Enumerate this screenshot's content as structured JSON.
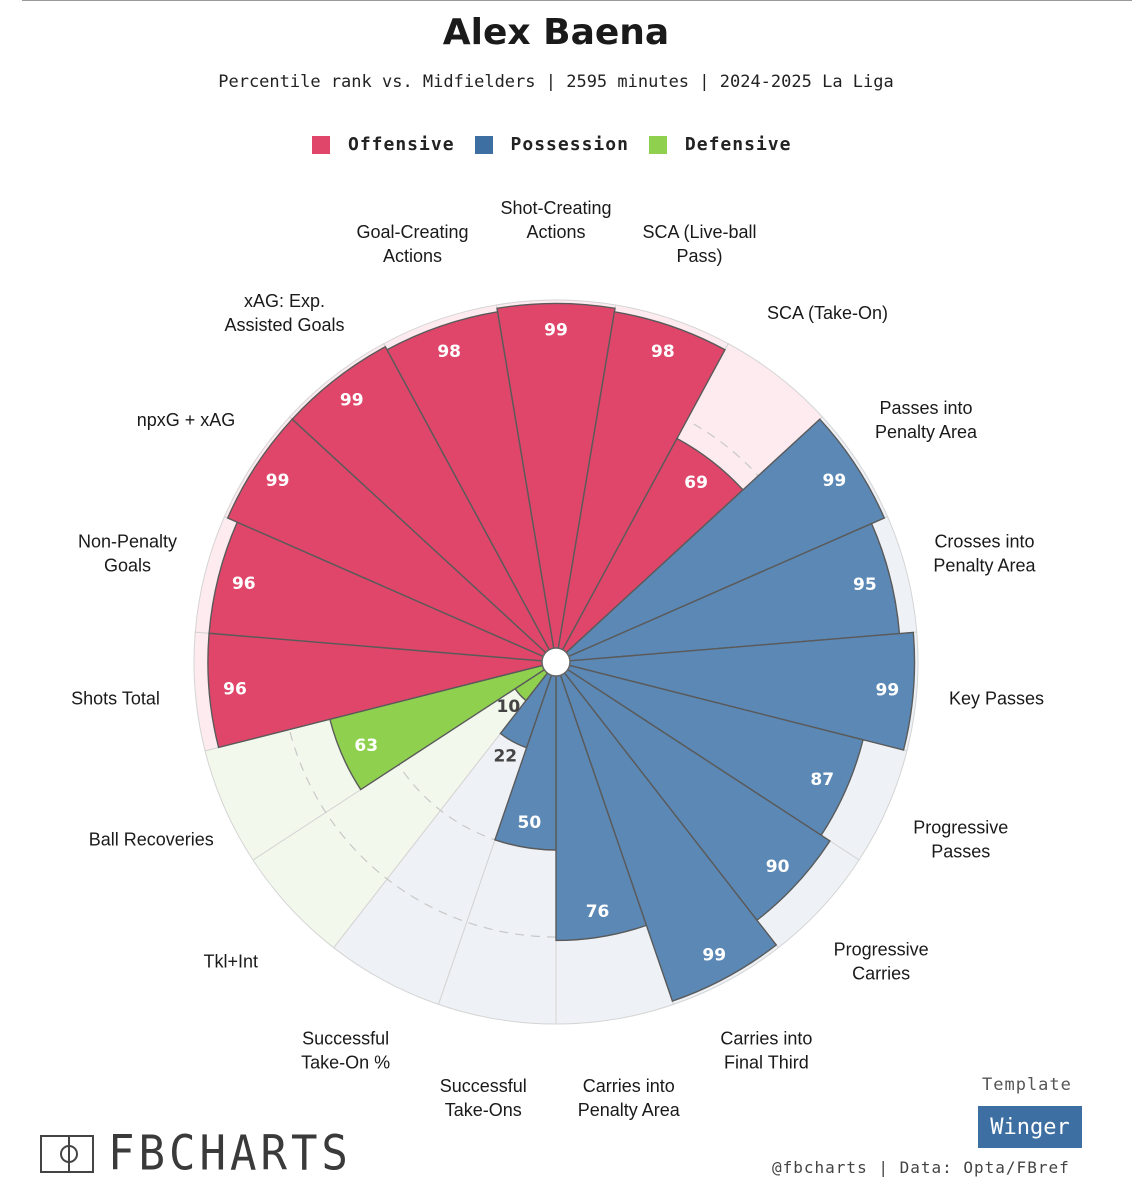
{
  "header": {
    "title": "Alex Baena",
    "subtitle": "Percentile rank vs. Midfielders | 2595 minutes | 2024-2025 La Liga"
  },
  "legend": [
    {
      "label": "Offensive",
      "color": "#e0466a"
    },
    {
      "label": "Possession",
      "color": "#3d6fa3"
    },
    {
      "label": "Defensive",
      "color": "#8fd14f"
    }
  ],
  "chart_data": {
    "type": "pizza",
    "range": [
      0,
      100
    ],
    "categories": {
      "Offensive": {
        "fill": "#e0466a",
        "background": "#fdebef"
      },
      "Possession": {
        "fill": "#5b88b5",
        "background": "#eef2f6"
      },
      "Defensive": {
        "fill": "#8fd14f",
        "background": "#f2f8ec"
      }
    },
    "metrics": [
      {
        "label": "Shot-Creating Actions",
        "value": 99,
        "category": "Offensive"
      },
      {
        "label": "SCA (Live-ball Pass)",
        "value": 98,
        "category": "Offensive"
      },
      {
        "label": "SCA (Take-On)",
        "value": 69,
        "category": "Offensive"
      },
      {
        "label": "Passes into Penalty Area",
        "value": 99,
        "category": "Possession"
      },
      {
        "label": "Crosses into Penalty Area",
        "value": 95,
        "category": "Possession"
      },
      {
        "label": "Key Passes",
        "value": 99,
        "category": "Possession"
      },
      {
        "label": "Progressive Passes",
        "value": 87,
        "category": "Possession"
      },
      {
        "label": "Progressive Carries",
        "value": 90,
        "category": "Possession"
      },
      {
        "label": "Carries into Final Third",
        "value": 99,
        "category": "Possession"
      },
      {
        "label": "Carries into Penalty Area",
        "value": 76,
        "category": "Possession"
      },
      {
        "label": "Successful Take-Ons",
        "value": 50,
        "category": "Possession"
      },
      {
        "label": "Successful Take-On %",
        "value": 22,
        "category": "Possession"
      },
      {
        "label": "Tkl+Int",
        "value": 10,
        "category": "Defensive"
      },
      {
        "label": "Ball Recoveries",
        "value": 63,
        "category": "Defensive"
      },
      {
        "label": "Shots Total",
        "value": 96,
        "category": "Offensive"
      },
      {
        "label": "Non-Penalty Goals",
        "value": 96,
        "category": "Offensive"
      },
      {
        "label": "npxG + xAG",
        "value": 99,
        "category": "Offensive"
      },
      {
        "label": "xAG: Exp. Assisted Goals",
        "value": 99,
        "category": "Offensive"
      },
      {
        "label": "Goal-Creating Actions",
        "value": 98,
        "category": "Offensive"
      }
    ],
    "label_lines": [
      [
        "Shot-Creating",
        "Actions"
      ],
      [
        "SCA (Live-ball",
        "Pass)"
      ],
      [
        "SCA (Take-On)"
      ],
      [
        "Passes into",
        "Penalty Area"
      ],
      [
        "Crosses into",
        "Penalty Area"
      ],
      [
        "Key Passes"
      ],
      [
        "Progressive",
        "Passes"
      ],
      [
        "Progressive",
        "Carries"
      ],
      [
        "Carries into",
        "Final Third"
      ],
      [
        "Carries into",
        "Penalty Area"
      ],
      [
        "Successful",
        "Take-Ons"
      ],
      [
        "Successful",
        "Take-On %"
      ],
      [
        "Tkl+Int"
      ],
      [
        "Ball Recoveries"
      ],
      [
        "Shots Total"
      ],
      [
        "Non-Penalty",
        "Goals"
      ],
      [
        "npxG + xAG"
      ],
      [
        "xAG: Exp.",
        "Assisted Goals"
      ],
      [
        "Goal-Creating",
        "Actions"
      ]
    ]
  },
  "footer": {
    "brand": "FBCHARTS",
    "template_label": "Template",
    "template_name": "Winger",
    "credit": "@fbcharts | Data: Opta/FBref"
  }
}
